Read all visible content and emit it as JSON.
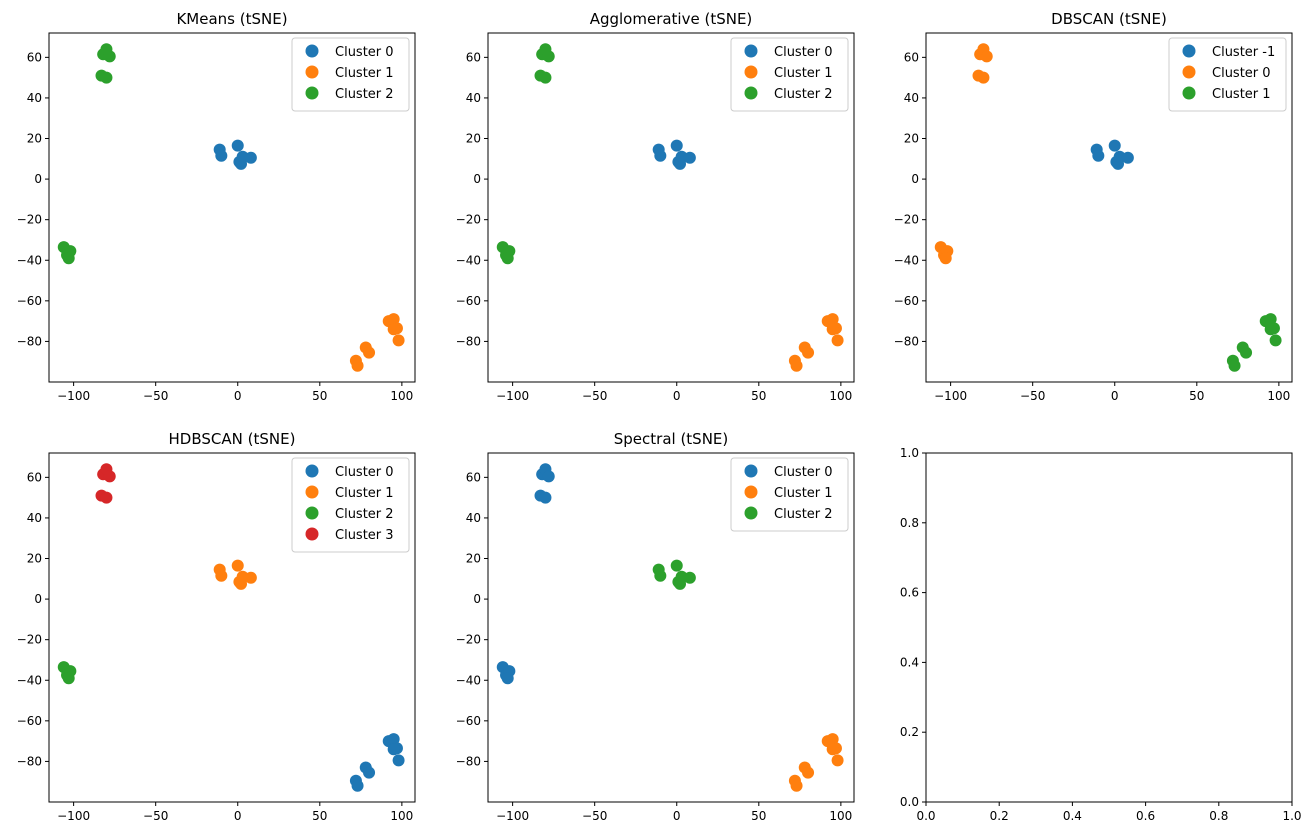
{
  "colors": {
    "tab_blue": "#1f77b4",
    "tab_orange": "#ff7f0e",
    "tab_green": "#2ca02c",
    "tab_red": "#d62728"
  },
  "chart_data": [
    {
      "type": "scatter",
      "title": "KMeans (tSNE)",
      "xlim": [
        -115,
        108
      ],
      "ylim": [
        -100,
        72
      ],
      "xticks": [
        -100,
        -50,
        0,
        50,
        100
      ],
      "yticks": [
        -80,
        -60,
        -40,
        -20,
        0,
        20,
        40,
        60
      ],
      "legend": "top-right",
      "series": [
        {
          "name": "Cluster 0",
          "color": "#1f77b4",
          "x": [
            -11,
            -10,
            0,
            1,
            2,
            3,
            8
          ],
          "y": [
            14.5,
            11.5,
            16.5,
            8.5,
            7.5,
            11,
            10.5
          ]
        },
        {
          "name": "Cluster 1",
          "color": "#ff7f0e",
          "x": [
            92,
            95,
            97,
            95,
            98,
            78,
            80,
            72,
            73
          ],
          "y": [
            -70,
            -69,
            -73.5,
            -74,
            -79.5,
            -83,
            -85.5,
            -89.5,
            -92
          ]
        },
        {
          "name": "Cluster 2",
          "color": "#2ca02c",
          "x": [
            -82,
            -80,
            -78,
            -83,
            -80,
            -106,
            -104,
            -102,
            -103
          ],
          "y": [
            61.5,
            64,
            60.5,
            51,
            50,
            -33.5,
            -37.5,
            -35.5,
            -39
          ]
        }
      ]
    },
    {
      "type": "scatter",
      "title": "Agglomerative (tSNE)",
      "xlim": [
        -115,
        108
      ],
      "ylim": [
        -100,
        72
      ],
      "xticks": [
        -100,
        -50,
        0,
        50,
        100
      ],
      "yticks": [
        -80,
        -60,
        -40,
        -20,
        0,
        20,
        40,
        60
      ],
      "legend": "top-right",
      "series": [
        {
          "name": "Cluster 0",
          "color": "#1f77b4",
          "x": [
            -11,
            -10,
            0,
            1,
            2,
            3,
            8
          ],
          "y": [
            14.5,
            11.5,
            16.5,
            8.5,
            7.5,
            11,
            10.5
          ]
        },
        {
          "name": "Cluster 1",
          "color": "#ff7f0e",
          "x": [
            92,
            95,
            97,
            95,
            98,
            78,
            80,
            72,
            73
          ],
          "y": [
            -70,
            -69,
            -73.5,
            -74,
            -79.5,
            -83,
            -85.5,
            -89.5,
            -92
          ]
        },
        {
          "name": "Cluster 2",
          "color": "#2ca02c",
          "x": [
            -82,
            -80,
            -78,
            -83,
            -80,
            -106,
            -104,
            -102,
            -103
          ],
          "y": [
            61.5,
            64,
            60.5,
            51,
            50,
            -33.5,
            -37.5,
            -35.5,
            -39
          ]
        }
      ]
    },
    {
      "type": "scatter",
      "title": "DBSCAN (tSNE)",
      "xlim": [
        -115,
        108
      ],
      "ylim": [
        -100,
        72
      ],
      "xticks": [
        -100,
        -50,
        0,
        50,
        100
      ],
      "yticks": [
        -80,
        -60,
        -40,
        -20,
        0,
        20,
        40,
        60
      ],
      "legend": "top-right",
      "series": [
        {
          "name": "Cluster -1",
          "color": "#1f77b4",
          "x": [
            -11,
            -10,
            0,
            1,
            2,
            3,
            8
          ],
          "y": [
            14.5,
            11.5,
            16.5,
            8.5,
            7.5,
            11,
            10.5
          ]
        },
        {
          "name": "Cluster 0",
          "color": "#ff7f0e",
          "x": [
            -82,
            -80,
            -78,
            -83,
            -80,
            -106,
            -104,
            -102,
            -103
          ],
          "y": [
            61.5,
            64,
            60.5,
            51,
            50,
            -33.5,
            -37.5,
            -35.5,
            -39
          ]
        },
        {
          "name": "Cluster 1",
          "color": "#2ca02c",
          "x": [
            92,
            95,
            97,
            95,
            98,
            78,
            80,
            72,
            73
          ],
          "y": [
            -70,
            -69,
            -73.5,
            -74,
            -79.5,
            -83,
            -85.5,
            -89.5,
            -92
          ]
        }
      ]
    },
    {
      "type": "scatter",
      "title": "HDBSCAN (tSNE)",
      "xlim": [
        -115,
        108
      ],
      "ylim": [
        -100,
        72
      ],
      "xticks": [
        -100,
        -50,
        0,
        50,
        100
      ],
      "yticks": [
        -80,
        -60,
        -40,
        -20,
        0,
        20,
        40,
        60
      ],
      "legend": "top-right",
      "series": [
        {
          "name": "Cluster 0",
          "color": "#1f77b4",
          "x": [
            92,
            95,
            97,
            95,
            98,
            78,
            80,
            72,
            73
          ],
          "y": [
            -70,
            -69,
            -73.5,
            -74,
            -79.5,
            -83,
            -85.5,
            -89.5,
            -92
          ]
        },
        {
          "name": "Cluster 1",
          "color": "#ff7f0e",
          "x": [
            -11,
            -10,
            0,
            1,
            2,
            3,
            8
          ],
          "y": [
            14.5,
            11.5,
            16.5,
            8.5,
            7.5,
            11,
            10.5
          ]
        },
        {
          "name": "Cluster 2",
          "color": "#2ca02c",
          "x": [
            -106,
            -104,
            -102,
            -103
          ],
          "y": [
            -33.5,
            -37.5,
            -35.5,
            -39
          ]
        },
        {
          "name": "Cluster 3",
          "color": "#d62728",
          "x": [
            -82,
            -80,
            -78,
            -83,
            -80
          ],
          "y": [
            61.5,
            64,
            60.5,
            51,
            50
          ]
        }
      ]
    },
    {
      "type": "scatter",
      "title": "Spectral (tSNE)",
      "xlim": [
        -115,
        108
      ],
      "ylim": [
        -100,
        72
      ],
      "xticks": [
        -100,
        -50,
        0,
        50,
        100
      ],
      "yticks": [
        -80,
        -60,
        -40,
        -20,
        0,
        20,
        40,
        60
      ],
      "legend": "top-right",
      "series": [
        {
          "name": "Cluster 0",
          "color": "#1f77b4",
          "x": [
            -82,
            -80,
            -78,
            -83,
            -80,
            -106,
            -104,
            -102,
            -103
          ],
          "y": [
            61.5,
            64,
            60.5,
            51,
            50,
            -33.5,
            -37.5,
            -35.5,
            -39
          ]
        },
        {
          "name": "Cluster 1",
          "color": "#ff7f0e",
          "x": [
            92,
            95,
            97,
            95,
            98,
            78,
            80,
            72,
            73
          ],
          "y": [
            -70,
            -69,
            -73.5,
            -74,
            -79.5,
            -83,
            -85.5,
            -89.5,
            -92
          ]
        },
        {
          "name": "Cluster 2",
          "color": "#2ca02c",
          "x": [
            -11,
            -10,
            0,
            1,
            2,
            3,
            8
          ],
          "y": [
            14.5,
            11.5,
            16.5,
            8.5,
            7.5,
            11,
            10.5
          ]
        }
      ]
    },
    {
      "type": "scatter",
      "title": "",
      "xlim": [
        0,
        1
      ],
      "ylim": [
        0,
        1
      ],
      "xticks": [
        "0.0",
        "0.2",
        "0.4",
        "0.6",
        "0.8",
        "1.0"
      ],
      "yticks": [
        "0.0",
        "0.2",
        "0.4",
        "0.6",
        "0.8",
        "1.0"
      ],
      "series": []
    }
  ]
}
